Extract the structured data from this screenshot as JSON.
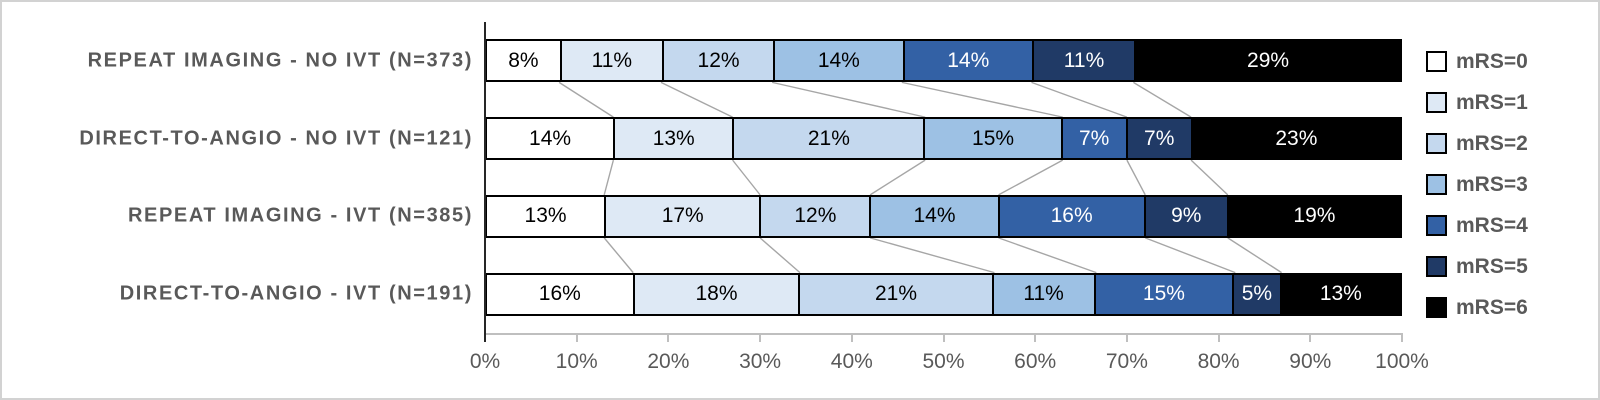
{
  "chart_data": {
    "type": "bar",
    "orientation": "horizontal",
    "stacked": true,
    "title": "",
    "xlabel": "",
    "ylabel": "",
    "categories": [
      "REPEAT IMAGING - NO IVT (N=373)",
      "DIRECT-TO-ANGIO - NO IVT (N=121)",
      "REPEAT IMAGING - IVT (N=385)",
      "DIRECT-TO-ANGIO - IVT (N=191)"
    ],
    "series": [
      {
        "name": "mRS=0",
        "color": "#FFFFFF",
        "text_color": "#000000",
        "values": [
          8,
          14,
          13,
          16
        ]
      },
      {
        "name": "mRS=1",
        "color": "#DEE9F5",
        "text_color": "#000000",
        "values": [
          11,
          13,
          17,
          18
        ]
      },
      {
        "name": "mRS=2",
        "color": "#C4D8EE",
        "text_color": "#000000",
        "values": [
          12,
          21,
          12,
          21
        ]
      },
      {
        "name": "mRS=3",
        "color": "#9DC1E4",
        "text_color": "#000000",
        "values": [
          14,
          15,
          14,
          11
        ]
      },
      {
        "name": "mRS=4",
        "color": "#3361A5",
        "text_color": "#FFFFFF",
        "values": [
          14,
          7,
          16,
          15
        ]
      },
      {
        "name": "mRS=5",
        "color": "#203A66",
        "text_color": "#FFFFFF",
        "values": [
          11,
          7,
          9,
          5
        ]
      },
      {
        "name": "mRS=6",
        "color": "#000000",
        "text_color": "#FFFFFF",
        "values": [
          29,
          23,
          19,
          13
        ]
      }
    ],
    "value_suffix": "%",
    "data_label_format": "integer percent",
    "x_axis": {
      "min": 0,
      "max": 100,
      "tick_step": 10,
      "tick_labels": [
        "0%",
        "10%",
        "20%",
        "30%",
        "40%",
        "50%",
        "60%",
        "70%",
        "80%",
        "90%",
        "100%"
      ]
    },
    "legend": {
      "position": "right",
      "entries": [
        "mRS=0",
        "mRS=1",
        "mRS=2",
        "mRS=3",
        "mRS=4",
        "mRS=5",
        "mRS=6"
      ]
    },
    "connector_lines": true,
    "connector_color": "#A6A6A6",
    "grid": false
  },
  "style_colors": {
    "category_label": "#595959",
    "tick_label": "#595959",
    "legend_label": "#595959",
    "axis_line": "#BFBFBF",
    "left_axis_line": "#262626",
    "segment_border": "#000000"
  }
}
